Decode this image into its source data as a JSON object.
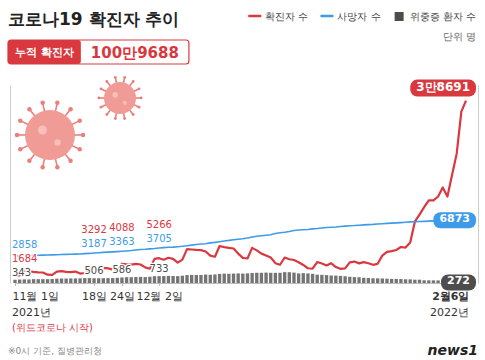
{
  "chart_data": {
    "type": "line",
    "title": "코로나19 확진자 추이",
    "unit": "단위 명",
    "callout": {
      "label": "누적 확진자",
      "text": "100만9688"
    },
    "categories": [
      "11월 1일",
      null,
      null,
      null,
      null,
      null,
      null,
      null,
      null,
      null,
      null,
      null,
      null,
      null,
      null,
      null,
      null,
      "18일",
      null,
      null,
      null,
      null,
      null,
      "24일",
      null,
      null,
      null,
      null,
      null,
      null,
      null,
      "12월 2일",
      null,
      null,
      null,
      null,
      null,
      null,
      null,
      null,
      null,
      null,
      null,
      null,
      null,
      null,
      null,
      null,
      null,
      null,
      null,
      null,
      null,
      null,
      null,
      null,
      null,
      null,
      null,
      null,
      null,
      null,
      null,
      null,
      null,
      null,
      null,
      null,
      null,
      null,
      null,
      null,
      null,
      null,
      null,
      null,
      null,
      null,
      null,
      null,
      null,
      null,
      null,
      null,
      null,
      null,
      null,
      null,
      null,
      null,
      null,
      null,
      null,
      null,
      null,
      null,
      null,
      "2월6일"
    ],
    "series": [
      {
        "name": "확진자 수",
        "type": "line",
        "color": "#d9383f",
        "values": [
          1684,
          1589,
          2667,
          2482,
          2344,
          2248,
          2224,
          1758,
          1715,
          2425,
          2520,
          2368,
          2324,
          2419,
          2006,
          2125,
          3187,
          3292,
          3034,
          3206,
          3120,
          2827,
          2699,
          4088,
          3938,
          3899,
          4068,
          3925,
          3309,
          3032,
          5123,
          5266,
          4944,
          5352,
          5128,
          4325,
          4954,
          7175,
          7102,
          7022,
          6977,
          6689,
          5817,
          5567,
          7850,
          7622,
          7435,
          7314,
          6236,
          5318,
          5202,
          7456,
          6919,
          6233,
          5842,
          5419,
          4207,
          3865,
          5409,
          5037,
          4875,
          4415,
          3833,
          3129,
          3024,
          4444,
          4126,
          3714,
          4194,
          3376,
          3005,
          3094,
          4388,
          4542,
          4167,
          4422,
          4193,
          3857,
          4071,
          5805,
          6603,
          6769,
          7009,
          7630,
          7513,
          8571,
          13012,
          14518,
          16096,
          17542,
          17528,
          18344,
          20270,
          18342,
          22907,
          27443,
          36362,
          38691
        ],
        "value_labels": [
          "1684",
          null,
          null,
          null,
          null,
          null,
          null,
          null,
          null,
          null,
          null,
          null,
          null,
          null,
          null,
          null,
          null,
          "3292",
          null,
          null,
          null,
          null,
          null,
          "4088",
          null,
          null,
          null,
          null,
          null,
          null,
          null,
          "5266",
          null,
          null,
          null,
          null,
          null,
          null,
          null,
          null,
          null,
          null,
          null,
          null,
          null,
          null,
          null,
          null,
          null,
          null,
          null,
          null,
          null,
          null,
          null,
          null,
          null,
          null,
          null,
          null,
          null,
          null,
          null,
          null,
          null,
          null,
          null,
          null,
          null,
          null,
          null,
          null,
          null,
          null,
          null,
          null,
          null,
          null,
          null,
          null,
          null,
          null,
          null,
          null,
          null,
          null,
          null,
          null,
          null,
          null,
          null,
          null,
          null,
          null,
          null,
          null,
          null,
          "3만8691"
        ]
      },
      {
        "name": "사망자 수",
        "type": "line",
        "color": "#3d9be9",
        "axis": "y2",
        "values": [
          2858,
          2874,
          2893,
          2911,
          2925,
          2937,
          2954,
          2968,
          2980,
          3001,
          3022,
          3034,
          3051,
          3063,
          3078,
          3115,
          3137,
          3187,
          3215,
          3245,
          3275,
          3298,
          3328,
          3363,
          3402,
          3441,
          3493,
          3548,
          3580,
          3624,
          3658,
          3705,
          3748,
          3791,
          3809,
          3852,
          3893,
          3957,
          4020,
          4077,
          4130,
          4170,
          4253,
          4310,
          4380,
          4456,
          4518,
          4591,
          4644,
          4686,
          4764,
          4873,
          4955,
          5015,
          5070,
          5119,
          5245,
          5328,
          5382,
          5455,
          5563,
          5625,
          5650,
          5678,
          5736,
          5781,
          5838,
          5882,
          5916,
          5937,
          5987,
          6037,
          6072,
          6095,
          6129,
          6166,
          6187,
          6215,
          6259,
          6288,
          6321,
          6354,
          6377,
          6405,
          6442,
          6478,
          6501,
          6525,
          6540,
          6565,
          6588,
          6620,
          6654,
          6688,
          6725,
          6772,
          6810,
          6873
        ],
        "value_labels": [
          "2858",
          null,
          null,
          null,
          null,
          null,
          null,
          null,
          null,
          null,
          null,
          null,
          null,
          null,
          null,
          null,
          null,
          "3187",
          null,
          null,
          null,
          null,
          null,
          "3363",
          null,
          null,
          null,
          null,
          null,
          null,
          null,
          "3705",
          null,
          null,
          null,
          null,
          null,
          null,
          null,
          null,
          null,
          null,
          null,
          null,
          null,
          null,
          null,
          null,
          null,
          null,
          null,
          null,
          null,
          null,
          null,
          null,
          null,
          null,
          null,
          null,
          null,
          null,
          null,
          null,
          null,
          null,
          null,
          null,
          null,
          null,
          null,
          null,
          null,
          null,
          null,
          null,
          null,
          null,
          null,
          null,
          null,
          null,
          null,
          null,
          null,
          null,
          null,
          null,
          null,
          null,
          null,
          null,
          null,
          null,
          null,
          null,
          null,
          "6873"
        ]
      },
      {
        "name": "위중증 환자 수",
        "type": "bar",
        "color": "#4d4d4d",
        "axis": "y2",
        "values": [
          343,
          364,
          382,
          378,
          411,
          405,
          409,
          405,
          425,
          460,
          473,
          475,
          485,
          483,
          495,
          522,
          522,
          506,
          499,
          508,
          517,
          515,
          549,
          586,
          612,
          617,
          634,
          647,
          629,
          661,
          723,
          733,
          736,
          752,
          744,
          727,
          774,
          840,
          857,
          852,
          856,
          894,
          876,
          906,
          964,
          989,
          975,
          997,
          1016,
          997,
          1022,
          1063,
          1084,
          1083,
          1105,
          1081,
          1078,
          1084,
          1151,
          1145,
          1102,
          1015,
          1044,
          1015,
          973,
          882,
          866,
          838,
          794,
          786,
          754,
          718,
          659,
          626,
          612,
          549,
          532,
          501,
          493,
          484,
          459,
          433,
          431,
          418,
          392,
          385,
          350,
          350,
          287,
          284,
          278,
          274,
          272,
          269,
          278,
          288,
          280,
          272
        ],
        "value_labels": [
          "343",
          null,
          null,
          null,
          null,
          null,
          null,
          null,
          null,
          null,
          null,
          null,
          null,
          null,
          null,
          null,
          null,
          "506",
          null,
          null,
          null,
          null,
          null,
          "586",
          null,
          null,
          null,
          null,
          null,
          null,
          null,
          "733",
          null,
          null,
          null,
          null,
          null,
          null,
          null,
          null,
          null,
          null,
          null,
          null,
          null,
          null,
          null,
          null,
          null,
          null,
          null,
          null,
          null,
          null,
          null,
          null,
          null,
          null,
          null,
          null,
          null,
          null,
          null,
          null,
          null,
          null,
          null,
          null,
          null,
          null,
          null,
          null,
          null,
          null,
          null,
          null,
          null,
          null,
          null,
          null,
          null,
          null,
          null,
          null,
          null,
          null,
          null,
          null,
          null,
          null,
          null,
          null,
          null,
          null,
          null,
          null,
          null,
          "272"
        ]
      }
    ],
    "ylim": [
      0,
      42000
    ],
    "yticks": [],
    "y2lim": [
      0,
      21000
    ],
    "y2ticks": [],
    "tick_labels": "x",
    "legend": "top-right",
    "data_labels": true,
    "annotations": [
      {
        "text": "2021년",
        "category": "11월 1일"
      },
      {
        "text": "(위드코로나 시작)",
        "category": "11월 1일",
        "color": "#d9383f"
      },
      {
        "text": "2022년",
        "category": "2월6일"
      }
    ],
    "source": "※0시 기준, 질병관리청",
    "credit": "news1"
  }
}
